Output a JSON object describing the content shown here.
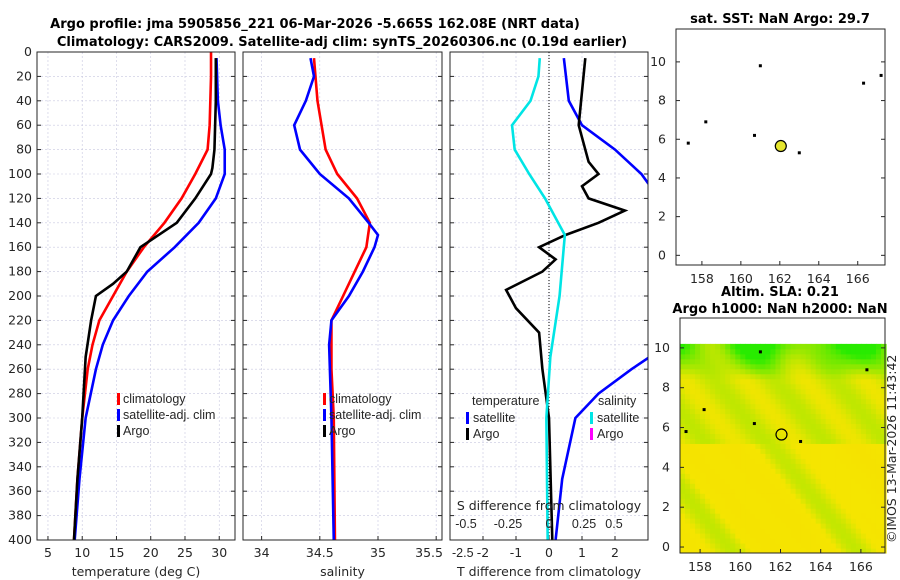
{
  "titles": {
    "main_line1": "Argo profile: jma 5905856_221 06-Mar-2026 -5.665S 162.08E (NRT data)",
    "main_line2": "Climatology: CARS2009. Satellite-adj clim: synTS_20260306.nc (0.19d earlier)",
    "map1": "sat. SST: NaN Argo: 29.7",
    "map2_line1": "Altim. SLA: 0.21",
    "map2_line2": "Argo h1000: NaN h2000: NaN",
    "copyright": "©IMOS 13-Mar-2026 11:43:42"
  },
  "colors": {
    "climatology": "#ff0000",
    "satellite": "#0000ff",
    "argo": "#000000",
    "salinity_satellite": "#00e5e5",
    "salinity_argo": "#ff00ff",
    "marker": "#e6e62e"
  },
  "chart_data": [
    {
      "type": "line",
      "xlabel": "temperature (deg C)",
      "ylabel": "",
      "xlim": [
        3.4,
        32.3
      ],
      "ylim": [
        0,
        400
      ],
      "xticks": [
        5,
        10,
        15,
        20,
        25,
        30
      ],
      "yticks": [
        0,
        20,
        40,
        60,
        80,
        100,
        120,
        140,
        160,
        180,
        200,
        220,
        240,
        260,
        280,
        300,
        320,
        340,
        360,
        380,
        400
      ],
      "legend": [
        "climatology",
        "satellite-adj. clim",
        "Argo"
      ],
      "series": [
        {
          "name": "climatology",
          "color": "#ff0000",
          "depth": [
            0,
            20,
            60,
            80,
            100,
            120,
            140,
            160,
            180,
            200,
            220,
            240,
            260,
            300,
            350,
            400
          ],
          "values": [
            28.8,
            28.8,
            28.6,
            28.3,
            26.5,
            24.5,
            22,
            19,
            16.5,
            14.5,
            12.5,
            11.5,
            10.8,
            10,
            9.3,
            8.8
          ]
        },
        {
          "name": "satellite-adj. clim",
          "color": "#0000ff",
          "depth": [
            5,
            40,
            60,
            80,
            100,
            120,
            140,
            160,
            180,
            200,
            220,
            240,
            260,
            300,
            350,
            400
          ],
          "values": [
            29.6,
            29.8,
            30.2,
            30.8,
            30.8,
            29.5,
            27,
            23.5,
            19.5,
            16.8,
            14.5,
            13,
            12,
            10.5,
            9.6,
            8.9
          ]
        },
        {
          "name": "Argo",
          "color": "#000000",
          "depth": [
            5,
            40,
            80,
            95,
            100,
            120,
            140,
            160,
            170,
            180,
            190,
            200,
            220,
            250,
            300,
            350,
            400
          ],
          "values": [
            29.5,
            29.5,
            29.3,
            29,
            28.8,
            26.5,
            23.8,
            18.5,
            17.5,
            16.5,
            14.5,
            12,
            11.3,
            10.5,
            10,
            9.3,
            8.8
          ]
        }
      ]
    },
    {
      "type": "line",
      "xlabel": "salinity",
      "ylabel": "",
      "xlim": [
        33.84,
        35.55
      ],
      "ylim": [
        0,
        400
      ],
      "xticks": [
        34,
        34.5,
        35,
        35.5
      ],
      "legend": [
        "climatology",
        "satellite-adj. clim",
        "Argo"
      ],
      "series": [
        {
          "name": "climatology",
          "color": "#ff0000",
          "depth": [
            5,
            40,
            80,
            100,
            120,
            140,
            160,
            180,
            200,
            220,
            260,
            300,
            400
          ],
          "values": [
            34.45,
            34.48,
            34.55,
            34.65,
            34.82,
            34.93,
            34.9,
            34.8,
            34.7,
            34.6,
            34.6,
            34.62,
            34.63
          ]
        },
        {
          "name": "satellite-adj. clim",
          "color": "#0000ff",
          "depth": [
            5,
            20,
            40,
            60,
            80,
            100,
            120,
            140,
            150,
            160,
            180,
            200,
            220,
            240,
            300,
            400
          ],
          "values": [
            34.42,
            34.45,
            34.38,
            34.28,
            34.33,
            34.5,
            34.75,
            34.92,
            35,
            34.97,
            34.87,
            34.75,
            34.6,
            34.58,
            34.6,
            34.62
          ]
        }
      ]
    },
    {
      "type": "line",
      "xlabel": "T difference from climatology",
      "x2label": "S difference from climatology",
      "xlim": [
        -3,
        3
      ],
      "ylim": [
        0,
        400
      ],
      "xticks": [
        -2,
        -1,
        0,
        1,
        2
      ],
      "xticks_extra_label": "-2.5",
      "x2lim": [
        -0.75,
        0.75
      ],
      "x2ticks": [
        -0.5,
        -0.25,
        0,
        0.25,
        0.5
      ],
      "legend_temperature": {
        "title": "temperature",
        "items": [
          "satellite",
          "Argo"
        ]
      },
      "legend_salinity": {
        "title": "salinity",
        "items": [
          "satellite",
          "Argo"
        ]
      },
      "series": [
        {
          "name": "temperature satellite",
          "color": "#0000ff",
          "axis": "T",
          "depth": [
            5,
            40,
            60,
            80,
            100,
            130,
            240,
            260,
            280,
            300,
            350,
            400
          ],
          "values": [
            0.45,
            0.6,
            1.0,
            2.0,
            2.8,
            3.6,
            3.6,
            2.5,
            1.5,
            0.8,
            0.4,
            0.2
          ]
        },
        {
          "name": "temperature Argo",
          "color": "#000000",
          "axis": "T",
          "depth": [
            5,
            60,
            90,
            100,
            110,
            120,
            130,
            140,
            150,
            160,
            170,
            180,
            195,
            210,
            230,
            260,
            300,
            400
          ],
          "values": [
            1.1,
            0.9,
            1.2,
            1.5,
            1.0,
            1.2,
            2.3,
            1.5,
            0.5,
            -0.3,
            0.2,
            -0.2,
            -1.3,
            -1.0,
            -0.3,
            -0.2,
            0,
            0.1
          ]
        },
        {
          "name": "salinity satellite",
          "color": "#00e5e5",
          "axis": "S",
          "depth": [
            5,
            20,
            40,
            60,
            80,
            100,
            120,
            150,
            200,
            250,
            300,
            400
          ],
          "values": [
            -0.07,
            -0.08,
            -0.14,
            -0.28,
            -0.26,
            -0.15,
            -0.03,
            0.12,
            0.08,
            0.01,
            -0.02,
            -0.01
          ]
        }
      ]
    },
    {
      "type": "scatter",
      "title": "sat. SST: NaN Argo: 29.7",
      "xlim": [
        156.67,
        167.4
      ],
      "ylim": [
        -0.5,
        11.7
      ],
      "xticks": [
        158,
        160,
        162,
        164,
        166
      ],
      "yticks": [
        0,
        2,
        4,
        6,
        8,
        10
      ],
      "argo_position": [
        162.05,
        5.65
      ],
      "other_points": [
        [
          158.2,
          6.9
        ],
        [
          157.3,
          5.8
        ],
        [
          161,
          9.8
        ],
        [
          166.3,
          8.9
        ],
        [
          160.7,
          6.2
        ],
        [
          163,
          5.3
        ],
        [
          167.2,
          9.3
        ]
      ]
    },
    {
      "type": "heatmap",
      "title": "Altim. SLA: 0.21",
      "xlim": [
        157,
        167.2
      ],
      "ylim": [
        -0.3,
        11.5
      ],
      "xticks": [
        158,
        160,
        162,
        164,
        166
      ],
      "yticks": [
        0,
        2,
        4,
        6,
        8,
        10
      ],
      "argo_position": [
        162.05,
        5.65
      ],
      "other_points": [
        [
          158.2,
          6.9
        ],
        [
          157.3,
          5.8
        ],
        [
          161,
          9.8
        ],
        [
          166.3,
          8.9
        ],
        [
          160.7,
          6.2
        ],
        [
          163,
          5.3
        ]
      ]
    }
  ]
}
